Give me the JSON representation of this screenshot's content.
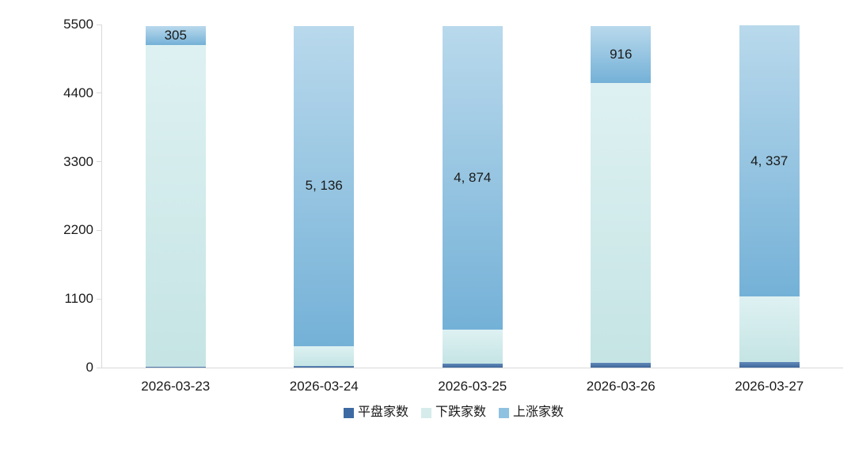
{
  "chart_data": {
    "type": "bar",
    "stacked": true,
    "title": "",
    "xlabel": "",
    "ylabel": "",
    "categories": [
      "2026-03-23",
      "2026-03-24",
      "2026-03-25",
      "2026-03-26",
      "2026-03-27"
    ],
    "series": [
      {
        "name": "平盘家数",
        "key": "flat",
        "values": [
          15,
          25,
          60,
          75,
          85
        ],
        "labels": [
          "",
          "",
          "",
          "",
          ""
        ],
        "color_top": "#6189b8",
        "color_bottom": "#3f689b",
        "legend_color": "#3d6aa3"
      },
      {
        "name": "下跌家数",
        "key": "down",
        "values": [
          5160,
          320,
          545,
          4490,
          1060
        ],
        "labels": [
          "",
          "",
          "",
          "",
          ""
        ],
        "color_top": "#def1f2",
        "color_bottom": "#c5e4e4",
        "legend_color": "#d5eceb"
      },
      {
        "name": "上涨家数",
        "key": "up",
        "values": [
          305,
          5136,
          4874,
          916,
          4337
        ],
        "labels": [
          "305",
          "5, 136",
          "4, 874",
          "916",
          "4, 337"
        ],
        "color_top": "#b9d9ec",
        "color_bottom": "#74b1d7",
        "legend_color": "#8fc2e1"
      }
    ],
    "ylim": [
      0,
      5500
    ],
    "yticks": [
      "0",
      "1100",
      "2200",
      "3300",
      "4400",
      "5500"
    ],
    "grid": false,
    "legend_position": "bottom",
    "colors": {
      "axis": "#d9d9d9",
      "text": "#1a1a1a",
      "background": "#ffffff"
    }
  }
}
